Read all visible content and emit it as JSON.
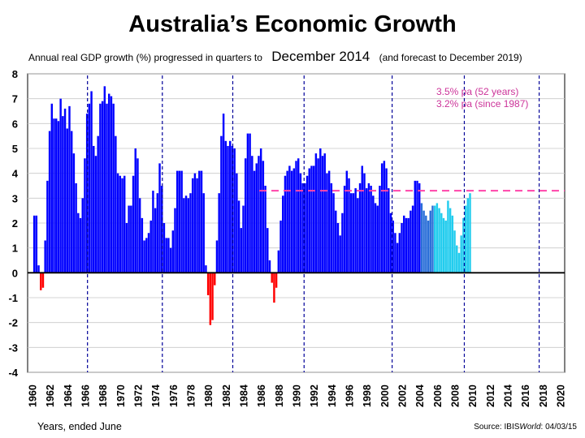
{
  "title": "Australia’s Economic Growth",
  "subtitle": {
    "prefix": "Annual real GDP growth  (%) progressed in quarters to",
    "highlight": "December 2014",
    "suffix": "(and forecast to December 2019)"
  },
  "footer": {
    "xlabel": "Years, ended June",
    "source_prefix": "Source: IBIS",
    "source_brand": "World",
    "source_date": ":  04/03/15"
  },
  "colors": {
    "positive": "#0000ff",
    "negative": "#ff0000",
    "estimate": "#2a6fd8",
    "forecast": "#22ccee",
    "average_line": "#ff44aa",
    "annotation": "#cc3399",
    "period_line": "#000099"
  },
  "chart_data": {
    "type": "bar",
    "title": "Australia’s Economic Growth",
    "xlabel": "Years, ended June",
    "ylabel": "",
    "ylim": [
      -4,
      8
    ],
    "yticks": [
      "-4",
      "-3",
      "-2",
      "-1",
      "0",
      "1",
      "2",
      "3",
      "4",
      "5",
      "6",
      "7",
      "8"
    ],
    "xticks": [
      "1960",
      "1962",
      "1964",
      "1966",
      "1968",
      "1970",
      "1972",
      "1974",
      "1976",
      "1978",
      "1980",
      "1982",
      "1984",
      "1986",
      "1988",
      "1990",
      "1992",
      "1994",
      "1996",
      "1998",
      "2000",
      "2002",
      "2004",
      "2006",
      "2008",
      "2010",
      "2012",
      "2014",
      "2016",
      "2018",
      "2020"
    ],
    "grid": true,
    "series": [
      {
        "kind": "actual",
        "points": [
          [
            1960.25,
            2.3
          ],
          [
            1960.5,
            2.3
          ],
          [
            1960.75,
            0.3
          ],
          [
            1961.0,
            -0.7
          ],
          [
            1961.25,
            -0.6
          ],
          [
            1961.5,
            1.3
          ],
          [
            1961.75,
            3.7
          ],
          [
            1962.0,
            5.7
          ],
          [
            1962.25,
            6.8
          ],
          [
            1962.5,
            6.2
          ],
          [
            1962.75,
            6.2
          ],
          [
            1963.0,
            6.1
          ],
          [
            1963.25,
            7.0
          ],
          [
            1963.5,
            6.3
          ],
          [
            1963.75,
            6.6
          ],
          [
            1964.0,
            5.8
          ],
          [
            1964.25,
            6.7
          ],
          [
            1964.5,
            5.7
          ],
          [
            1964.75,
            4.8
          ],
          [
            1965.0,
            3.6
          ],
          [
            1965.25,
            2.4
          ],
          [
            1965.5,
            2.2
          ],
          [
            1965.75,
            3.0
          ],
          [
            1966.0,
            4.6
          ],
          [
            1966.25,
            6.4
          ],
          [
            1966.5,
            6.8
          ],
          [
            1966.75,
            7.3
          ],
          [
            1967.0,
            5.1
          ],
          [
            1967.25,
            4.7
          ],
          [
            1967.5,
            5.5
          ],
          [
            1967.75,
            6.8
          ],
          [
            1968.0,
            6.9
          ],
          [
            1968.25,
            7.5
          ],
          [
            1968.5,
            6.8
          ],
          [
            1968.75,
            7.2
          ],
          [
            1969.0,
            7.1
          ],
          [
            1969.25,
            6.8
          ],
          [
            1969.5,
            5.5
          ],
          [
            1969.75,
            4.0
          ],
          [
            1970.0,
            3.9
          ],
          [
            1970.25,
            3.8
          ],
          [
            1970.5,
            3.9
          ],
          [
            1970.75,
            2.0
          ],
          [
            1971.0,
            2.7
          ],
          [
            1971.25,
            2.7
          ],
          [
            1971.5,
            3.9
          ],
          [
            1971.75,
            5.0
          ],
          [
            1972.0,
            4.6
          ],
          [
            1972.25,
            3.0
          ],
          [
            1972.5,
            2.2
          ],
          [
            1972.75,
            1.3
          ],
          [
            1973.0,
            1.4
          ],
          [
            1973.25,
            1.6
          ],
          [
            1973.5,
            2.1
          ],
          [
            1973.75,
            3.3
          ],
          [
            1974.0,
            2.6
          ],
          [
            1974.25,
            3.2
          ],
          [
            1974.5,
            4.4
          ],
          [
            1974.75,
            3.5
          ],
          [
            1975.0,
            2.0
          ],
          [
            1975.25,
            1.4
          ],
          [
            1975.5,
            1.4
          ],
          [
            1975.75,
            1.0
          ],
          [
            1976.0,
            1.7
          ],
          [
            1976.25,
            2.6
          ],
          [
            1976.5,
            4.1
          ],
          [
            1976.75,
            4.1
          ],
          [
            1977.0,
            4.1
          ],
          [
            1977.25,
            3.0
          ],
          [
            1977.5,
            3.1
          ],
          [
            1977.75,
            3.0
          ],
          [
            1978.0,
            3.2
          ],
          [
            1978.25,
            3.8
          ],
          [
            1978.5,
            4.0
          ],
          [
            1978.75,
            3.8
          ],
          [
            1979.0,
            4.1
          ],
          [
            1979.25,
            4.1
          ],
          [
            1979.5,
            3.2
          ],
          [
            1979.75,
            0.3
          ],
          [
            1980.0,
            -0.9
          ],
          [
            1980.25,
            -2.1
          ],
          [
            1980.5,
            -1.9
          ],
          [
            1980.75,
            -0.5
          ],
          [
            1981.0,
            1.3
          ],
          [
            1981.25,
            3.2
          ],
          [
            1981.5,
            5.5
          ],
          [
            1981.75,
            6.4
          ],
          [
            1982.0,
            5.3
          ],
          [
            1982.25,
            5.1
          ],
          [
            1982.5,
            5.3
          ],
          [
            1982.75,
            5.1
          ],
          [
            1983.0,
            5.0
          ],
          [
            1983.25,
            4.0
          ],
          [
            1983.5,
            2.9
          ],
          [
            1983.75,
            1.8
          ],
          [
            1984.0,
            2.7
          ],
          [
            1984.25,
            4.6
          ],
          [
            1984.5,
            5.6
          ],
          [
            1984.75,
            5.6
          ],
          [
            1985.0,
            4.7
          ],
          [
            1985.25,
            4.1
          ],
          [
            1985.5,
            4.4
          ],
          [
            1985.75,
            4.7
          ],
          [
            1986.0,
            5.0
          ],
          [
            1986.25,
            4.5
          ],
          [
            1986.5,
            3.5
          ],
          [
            1986.75,
            1.8
          ],
          [
            1987.0,
            0.5
          ],
          [
            1987.25,
            -0.4
          ],
          [
            1987.5,
            -1.2
          ],
          [
            1987.75,
            -0.6
          ],
          [
            1988.0,
            0.9
          ],
          [
            1988.25,
            2.1
          ],
          [
            1988.5,
            3.1
          ],
          [
            1988.75,
            3.9
          ],
          [
            1989.0,
            4.1
          ],
          [
            1989.25,
            4.3
          ],
          [
            1989.5,
            4.1
          ],
          [
            1989.75,
            4.2
          ],
          [
            1990.0,
            4.5
          ],
          [
            1990.25,
            4.6
          ],
          [
            1990.5,
            4.0
          ],
          [
            1990.75,
            3.6
          ],
          [
            1991.0,
            3.6
          ],
          [
            1991.25,
            3.9
          ],
          [
            1991.5,
            4.2
          ],
          [
            1991.75,
            4.3
          ],
          [
            1992.0,
            4.3
          ],
          [
            1992.25,
            4.8
          ],
          [
            1992.5,
            4.6
          ],
          [
            1992.75,
            5.0
          ],
          [
            1993.0,
            4.7
          ],
          [
            1993.25,
            4.8
          ],
          [
            1993.5,
            4.0
          ],
          [
            1993.75,
            4.1
          ],
          [
            1994.0,
            3.6
          ],
          [
            1994.25,
            3.2
          ],
          [
            1994.5,
            2.5
          ],
          [
            1994.75,
            2.0
          ],
          [
            1995.0,
            1.5
          ],
          [
            1995.25,
            2.4
          ],
          [
            1995.5,
            3.5
          ],
          [
            1995.75,
            4.1
          ],
          [
            1996.0,
            3.8
          ],
          [
            1996.25,
            3.2
          ],
          [
            1996.5,
            3.2
          ],
          [
            1996.75,
            3.4
          ],
          [
            1997.0,
            3.0
          ],
          [
            1997.25,
            3.6
          ],
          [
            1997.5,
            4.3
          ],
          [
            1997.75,
            4.0
          ],
          [
            1998.0,
            3.4
          ],
          [
            1998.25,
            3.6
          ],
          [
            1998.5,
            3.5
          ],
          [
            1998.75,
            3.1
          ],
          [
            1999.0,
            2.8
          ],
          [
            1999.25,
            2.7
          ],
          [
            1999.5,
            3.5
          ],
          [
            1999.75,
            4.4
          ],
          [
            2000.0,
            4.5
          ],
          [
            2000.25,
            4.2
          ],
          [
            2000.5,
            3.4
          ],
          [
            2000.75,
            2.4
          ],
          [
            2001.0,
            2.1
          ],
          [
            2001.25,
            1.6
          ],
          [
            2001.5,
            1.2
          ],
          [
            2001.75,
            1.6
          ],
          [
            2002.0,
            2.0
          ],
          [
            2002.25,
            2.3
          ],
          [
            2002.5,
            2.2
          ],
          [
            2002.75,
            2.2
          ],
          [
            2003.0,
            2.5
          ],
          [
            2003.25,
            2.7
          ],
          [
            2003.5,
            3.7
          ],
          [
            2003.75,
            3.7
          ],
          [
            2004.0,
            3.6
          ]
        ]
      },
      {
        "kind": "estimate",
        "points": [
          [
            2004.25,
            2.8
          ],
          [
            2004.5,
            2.5
          ],
          [
            2004.75,
            2.3
          ],
          [
            2005.0,
            2.1
          ],
          [
            2005.25,
            2.5
          ],
          [
            2005.5,
            2.7
          ]
        ]
      },
      {
        "kind": "forecast",
        "points": [
          [
            2005.75,
            2.7
          ],
          [
            2006.0,
            2.8
          ],
          [
            2006.25,
            2.6
          ],
          [
            2006.5,
            2.4
          ],
          [
            2006.75,
            2.2
          ],
          [
            2007.0,
            2.1
          ],
          [
            2007.25,
            2.9
          ],
          [
            2007.5,
            2.6
          ],
          [
            2007.75,
            2.3
          ],
          [
            2008.0,
            1.7
          ],
          [
            2008.25,
            1.1
          ],
          [
            2008.5,
            0.8
          ],
          [
            2008.75,
            1.5
          ],
          [
            2009.0,
            2.2
          ],
          [
            2009.25,
            2.7
          ],
          [
            2009.5,
            3.0
          ],
          [
            2009.75,
            3.2
          ]
        ]
      }
    ],
    "average_line": {
      "value": 3.3,
      "labels": [
        "3.5% pa",
        "3.2% pa"
      ],
      "notes": [
        "(52 years)",
        "(since 1987)"
      ]
    },
    "period_markers": [
      1966.3,
      1974.8,
      1982.8,
      1990.9,
      2000.9,
      2009.1,
      2017.6
    ],
    "annotations": [
      "3.5% pa  (52 years)",
      "3.2% pa  (since 1987)"
    ]
  }
}
